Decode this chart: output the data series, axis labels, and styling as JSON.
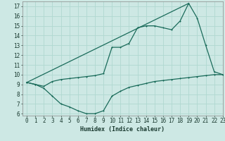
{
  "xlabel": "Humidex (Indice chaleur)",
  "bg_color": "#cde8e4",
  "grid_color": "#b0d8d0",
  "line_color": "#1a6b5a",
  "line1_x": [
    0,
    1,
    2,
    3,
    4,
    5,
    6,
    7,
    8,
    9,
    10,
    11,
    12,
    13,
    14,
    15,
    16,
    17,
    18,
    19,
    20,
    21,
    22,
    23
  ],
  "line1_y": [
    9.2,
    9.0,
    8.8,
    9.3,
    9.5,
    9.6,
    9.7,
    9.8,
    9.9,
    10.1,
    12.8,
    12.8,
    13.2,
    14.8,
    15.0,
    15.0,
    14.8,
    14.6,
    15.5,
    17.3,
    15.8,
    13.0,
    10.3,
    10.0
  ],
  "line2_x": [
    0,
    1,
    2,
    3,
    4,
    5,
    6,
    7,
    8,
    9,
    10,
    11,
    12,
    13,
    14,
    15,
    16,
    17,
    18,
    19,
    20,
    21,
    22,
    23
  ],
  "line2_y": [
    9.2,
    9.0,
    8.6,
    7.8,
    7.0,
    6.7,
    6.3,
    6.0,
    6.0,
    6.3,
    7.8,
    8.3,
    8.7,
    8.9,
    9.1,
    9.3,
    9.4,
    9.5,
    9.6,
    9.7,
    9.8,
    9.9,
    10.0,
    10.0
  ],
  "line3_x": [
    0,
    19
  ],
  "line3_y": [
    9.2,
    17.3
  ],
  "xlim": [
    -0.5,
    23
  ],
  "ylim": [
    5.8,
    17.5
  ],
  "yticks": [
    6,
    7,
    8,
    9,
    10,
    11,
    12,
    13,
    14,
    15,
    16,
    17
  ],
  "xticks": [
    0,
    1,
    2,
    3,
    4,
    5,
    6,
    7,
    8,
    9,
    10,
    11,
    12,
    13,
    14,
    15,
    16,
    17,
    18,
    19,
    20,
    21,
    22,
    23
  ],
  "tick_fontsize": 5.5,
  "label_fontsize": 6.0
}
